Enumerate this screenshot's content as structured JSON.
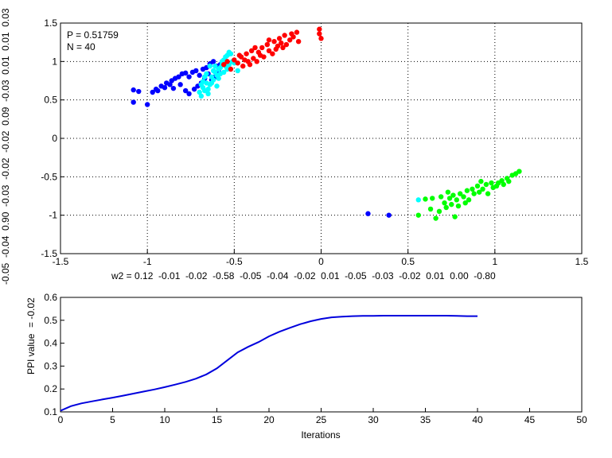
{
  "chart_data": [
    {
      "type": "scatter",
      "xlim": [
        -1.5,
        1.5
      ],
      "ylim": [
        -1.5,
        1.5
      ],
      "xticks": [
        "-1.5",
        "-1",
        "-0.5",
        "0",
        "0.5",
        "1",
        "1.5"
      ],
      "yticks": [
        "-1.5",
        "-1",
        "-0.5",
        "0",
        "0.5",
        "1",
        "1.5"
      ],
      "grid": true,
      "annotations": [
        "P = 0.51759",
        "N = 40"
      ],
      "xlabel": "w2 = 0.12  -0.01  -0.02  -0.58  -0.05  -0.04  -0.02  0.01  -0.05  -0.03  -0.02  0.01  0.00  -0.80",
      "ylabel": "-0.05  -0.04  0.90  -0.03  -0.02  -0.02  0.09  -0.03  0.01  0.01  0.03",
      "series": [
        {
          "color": "#0000ff",
          "points": [
            [
              -1.08,
              0.63
            ],
            [
              -1.05,
              0.61
            ],
            [
              -1.08,
              0.47
            ],
            [
              -1.0,
              0.44
            ],
            [
              -0.97,
              0.6
            ],
            [
              -0.94,
              0.62
            ],
            [
              -0.92,
              0.68
            ],
            [
              -0.9,
              0.66
            ],
            [
              -0.89,
              0.72
            ],
            [
              -0.87,
              0.7
            ],
            [
              -0.86,
              0.75
            ],
            [
              -0.84,
              0.78
            ],
            [
              -0.82,
              0.8
            ],
            [
              -0.8,
              0.84
            ],
            [
              -0.78,
              0.85
            ],
            [
              -0.76,
              0.8
            ],
            [
              -0.74,
              0.86
            ],
            [
              -0.72,
              0.88
            ],
            [
              -0.7,
              0.82
            ],
            [
              -0.68,
              0.9
            ],
            [
              -0.66,
              0.92
            ],
            [
              -0.64,
              0.97
            ],
            [
              -0.62,
              1.0
            ],
            [
              -0.6,
              0.94
            ],
            [
              -0.58,
              0.96
            ],
            [
              -0.85,
              0.65
            ],
            [
              -0.81,
              0.7
            ],
            [
              -0.78,
              0.62
            ],
            [
              -0.76,
              0.58
            ],
            [
              -0.73,
              0.64
            ],
            [
              -0.71,
              0.68
            ],
            [
              -0.69,
              0.72
            ],
            [
              -0.67,
              0.78
            ],
            [
              -0.65,
              0.84
            ],
            [
              -0.63,
              0.76
            ],
            [
              -0.61,
              0.8
            ],
            [
              -0.59,
              0.88
            ],
            [
              -0.95,
              0.64
            ],
            [
              0.27,
              -0.98
            ],
            [
              0.39,
              -1.0
            ]
          ]
        },
        {
          "color": "#00ffff",
          "points": [
            [
              -0.7,
              0.6
            ],
            [
              -0.69,
              0.55
            ],
            [
              -0.68,
              0.66
            ],
            [
              -0.67,
              0.62
            ],
            [
              -0.66,
              0.72
            ],
            [
              -0.65,
              0.58
            ],
            [
              -0.64,
              0.7
            ],
            [
              -0.63,
              0.8
            ],
            [
              -0.62,
              0.76
            ],
            [
              -0.61,
              0.86
            ],
            [
              -0.6,
              0.68
            ],
            [
              -0.59,
              0.9
            ],
            [
              -0.58,
              0.84
            ],
            [
              -0.57,
              0.96
            ],
            [
              -0.56,
              1.02
            ],
            [
              -0.55,
              0.94
            ],
            [
              -0.54,
              1.08
            ],
            [
              -0.53,
              1.12
            ],
            [
              -0.66,
              0.84
            ],
            [
              -0.64,
              0.94
            ],
            [
              -0.62,
              0.88
            ],
            [
              -0.6,
              0.82
            ],
            [
              -0.58,
              0.92
            ],
            [
              -0.56,
              0.86
            ],
            [
              -0.52,
              1.1
            ],
            [
              -0.5,
              0.98
            ],
            [
              -0.68,
              0.74
            ],
            [
              -0.65,
              0.64
            ],
            [
              -0.63,
              0.72
            ],
            [
              -0.61,
              0.94
            ],
            [
              -0.59,
              0.78
            ],
            [
              -0.57,
              1.0
            ],
            [
              -0.55,
              1.06
            ],
            [
              -0.54,
              0.9
            ],
            [
              -0.69,
              0.7
            ],
            [
              -0.67,
              0.8
            ],
            [
              -0.53,
              0.96
            ],
            [
              -0.51,
              1.0
            ],
            [
              -0.48,
              0.88
            ],
            [
              0.56,
              -0.8
            ]
          ]
        },
        {
          "color": "#ff0000",
          "points": [
            [
              -0.56,
              0.96
            ],
            [
              -0.54,
              1.0
            ],
            [
              -0.52,
              0.9
            ],
            [
              -0.5,
              1.02
            ],
            [
              -0.48,
              0.98
            ],
            [
              -0.46,
              1.06
            ],
            [
              -0.45,
              0.94
            ],
            [
              -0.43,
              1.1
            ],
            [
              -0.42,
              1.0
            ],
            [
              -0.4,
              1.14
            ],
            [
              -0.39,
              1.04
            ],
            [
              -0.37,
              1.0
            ],
            [
              -0.36,
              1.12
            ],
            [
              -0.34,
              1.18
            ],
            [
              -0.33,
              1.06
            ],
            [
              -0.31,
              1.22
            ],
            [
              -0.3,
              1.14
            ],
            [
              -0.28,
              1.1
            ],
            [
              -0.27,
              1.26
            ],
            [
              -0.25,
              1.2
            ],
            [
              -0.24,
              1.3
            ],
            [
              -0.22,
              1.18
            ],
            [
              -0.21,
              1.34
            ],
            [
              -0.2,
              1.22
            ],
            [
              -0.18,
              1.28
            ],
            [
              -0.17,
              1.36
            ],
            [
              -0.16,
              1.32
            ],
            [
              -0.14,
              1.38
            ],
            [
              -0.13,
              1.26
            ],
            [
              -0.3,
              1.28
            ],
            [
              -0.35,
              1.08
            ],
            [
              -0.41,
              0.96
            ],
            [
              -0.44,
              1.02
            ],
            [
              -0.47,
              1.08
            ],
            [
              -0.38,
              1.18
            ],
            [
              -0.26,
              1.16
            ],
            [
              -0.23,
              1.24
            ],
            [
              -0.01,
              1.42
            ],
            [
              -0.01,
              1.36
            ],
            [
              0.0,
              1.3
            ]
          ]
        },
        {
          "color": "#00ff00",
          "points": [
            [
              0.56,
              -1.0
            ],
            [
              0.6,
              -0.79
            ],
            [
              0.63,
              -0.92
            ],
            [
              0.64,
              -0.78
            ],
            [
              0.66,
              -1.04
            ],
            [
              0.68,
              -0.95
            ],
            [
              0.69,
              -0.76
            ],
            [
              0.71,
              -0.84
            ],
            [
              0.72,
              -0.9
            ],
            [
              0.73,
              -0.7
            ],
            [
              0.74,
              -0.78
            ],
            [
              0.75,
              -0.86
            ],
            [
              0.76,
              -0.74
            ],
            [
              0.77,
              -1.02
            ],
            [
              0.78,
              -0.8
            ],
            [
              0.79,
              -0.88
            ],
            [
              0.8,
              -0.72
            ],
            [
              0.82,
              -0.76
            ],
            [
              0.84,
              -0.68
            ],
            [
              0.85,
              -0.8
            ],
            [
              0.87,
              -0.66
            ],
            [
              0.88,
              -0.72
            ],
            [
              0.9,
              -0.62
            ],
            [
              0.91,
              -0.7
            ],
            [
              0.92,
              -0.56
            ],
            [
              0.93,
              -0.66
            ],
            [
              0.95,
              -0.6
            ],
            [
              0.96,
              -0.72
            ],
            [
              0.98,
              -0.58
            ],
            [
              0.99,
              -0.64
            ],
            [
              1.01,
              -0.62
            ],
            [
              1.02,
              -0.58
            ],
            [
              1.04,
              -0.55
            ],
            [
              1.05,
              -0.6
            ],
            [
              1.07,
              -0.52
            ],
            [
              1.08,
              -0.56
            ],
            [
              1.1,
              -0.48
            ],
            [
              1.12,
              -0.46
            ],
            [
              1.14,
              -0.43
            ],
            [
              0.83,
              -0.84
            ]
          ]
        }
      ]
    },
    {
      "type": "line",
      "xlim": [
        0,
        50
      ],
      "ylim": [
        0.1,
        0.6
      ],
      "xticks": [
        "0",
        "5",
        "10",
        "15",
        "20",
        "25",
        "30",
        "35",
        "40",
        "45",
        "50"
      ],
      "yticks": [
        "0.1",
        "0.2",
        "0.3",
        "0.4",
        "0.5",
        "0.6"
      ],
      "grid": false,
      "xlabel": "Iterations",
      "ylabel": "PPI value",
      "ylabel_overlap": "= -0.02",
      "series": [
        {
          "color": "#0000dd",
          "x": [
            0,
            1,
            2,
            3,
            4,
            5,
            6,
            7,
            8,
            9,
            10,
            11,
            12,
            13,
            14,
            15,
            16,
            17,
            18,
            19,
            20,
            21,
            22,
            23,
            24,
            25,
            26,
            27,
            28,
            29,
            30,
            31,
            32,
            33,
            34,
            35,
            36,
            37,
            38,
            39,
            40
          ],
          "y": [
            0.105,
            0.125,
            0.137,
            0.146,
            0.154,
            0.162,
            0.171,
            0.18,
            0.189,
            0.198,
            0.208,
            0.219,
            0.231,
            0.245,
            0.264,
            0.29,
            0.325,
            0.36,
            0.384,
            0.405,
            0.43,
            0.45,
            0.467,
            0.483,
            0.496,
            0.506,
            0.513,
            0.516,
            0.518,
            0.519,
            0.519,
            0.52,
            0.52,
            0.52,
            0.52,
            0.52,
            0.52,
            0.52,
            0.519,
            0.518,
            0.518
          ]
        }
      ]
    }
  ]
}
